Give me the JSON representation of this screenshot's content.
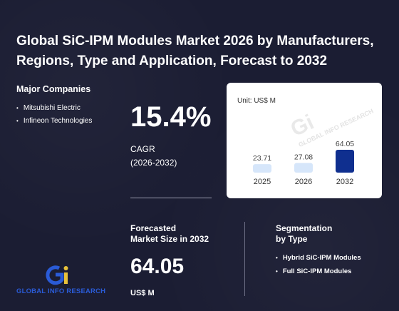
{
  "title": "Global SiC-IPM Modules Market 2026 by Manufacturers, Regions, Type and Application, Forecast to 2032",
  "companies": {
    "heading": "Major Companies",
    "items": [
      "Mitsubishi Electric",
      "Infineon Technologies"
    ]
  },
  "cagr": {
    "value": "15.4%",
    "label_line1": "CAGR",
    "label_line2": "(2026-2032)"
  },
  "forecast": {
    "label_line1": "Forecasted",
    "label_line2": "Market Size in 2032",
    "value": "64.05",
    "unit": "US$ M"
  },
  "segmentation": {
    "heading_line1": "Segmentation",
    "heading_line2": "by Type",
    "items": [
      "Hybrid SiC-IPM Modules",
      "Full SiC-IPM Modules"
    ]
  },
  "logo": {
    "text": "GLOBAL INFO RESEARCH",
    "watermark_text": "GLOBAL INFO RESEARCH",
    "colors": {
      "blue": "#2a5bd7",
      "yellow": "#e8c13a"
    }
  },
  "chart_data": {
    "type": "bar",
    "unit_label": "Unit: US$ M",
    "categories": [
      "2025",
      "2026",
      "2032"
    ],
    "values": [
      23.71,
      27.08,
      64.05
    ],
    "value_labels": [
      "23.71",
      "27.08",
      "64.05"
    ],
    "colors": [
      "#d6e6fa",
      "#d6e6fa",
      "#0f2f8f"
    ],
    "ylim": [
      0,
      64.05
    ]
  }
}
